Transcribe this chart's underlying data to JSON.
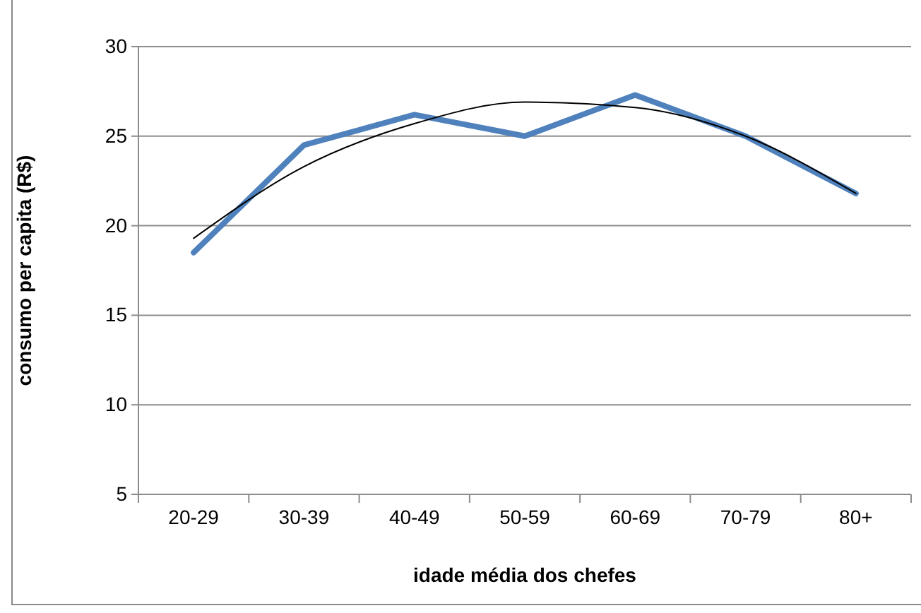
{
  "chart_data": {
    "type": "line",
    "xlabel": "idade média dos chefes",
    "ylabel": "consumo per capita (R$)",
    "categories": [
      "20-29",
      "30-39",
      "40-49",
      "50-59",
      "60-69",
      "70-79",
      "80+"
    ],
    "series": [
      {
        "color": "#4f81bd",
        "values": [
          18.5,
          24.5,
          26.2,
          25.0,
          27.3,
          25.0,
          21.8
        ]
      },
      {
        "color": "#000000",
        "values": [
          19.3,
          23.3,
          25.7,
          26.9,
          26.6,
          25.0,
          21.8
        ]
      }
    ],
    "ylim": [
      5,
      30
    ],
    "yticks": [
      5,
      10,
      15,
      20,
      25,
      30
    ],
    "grid": "y"
  }
}
